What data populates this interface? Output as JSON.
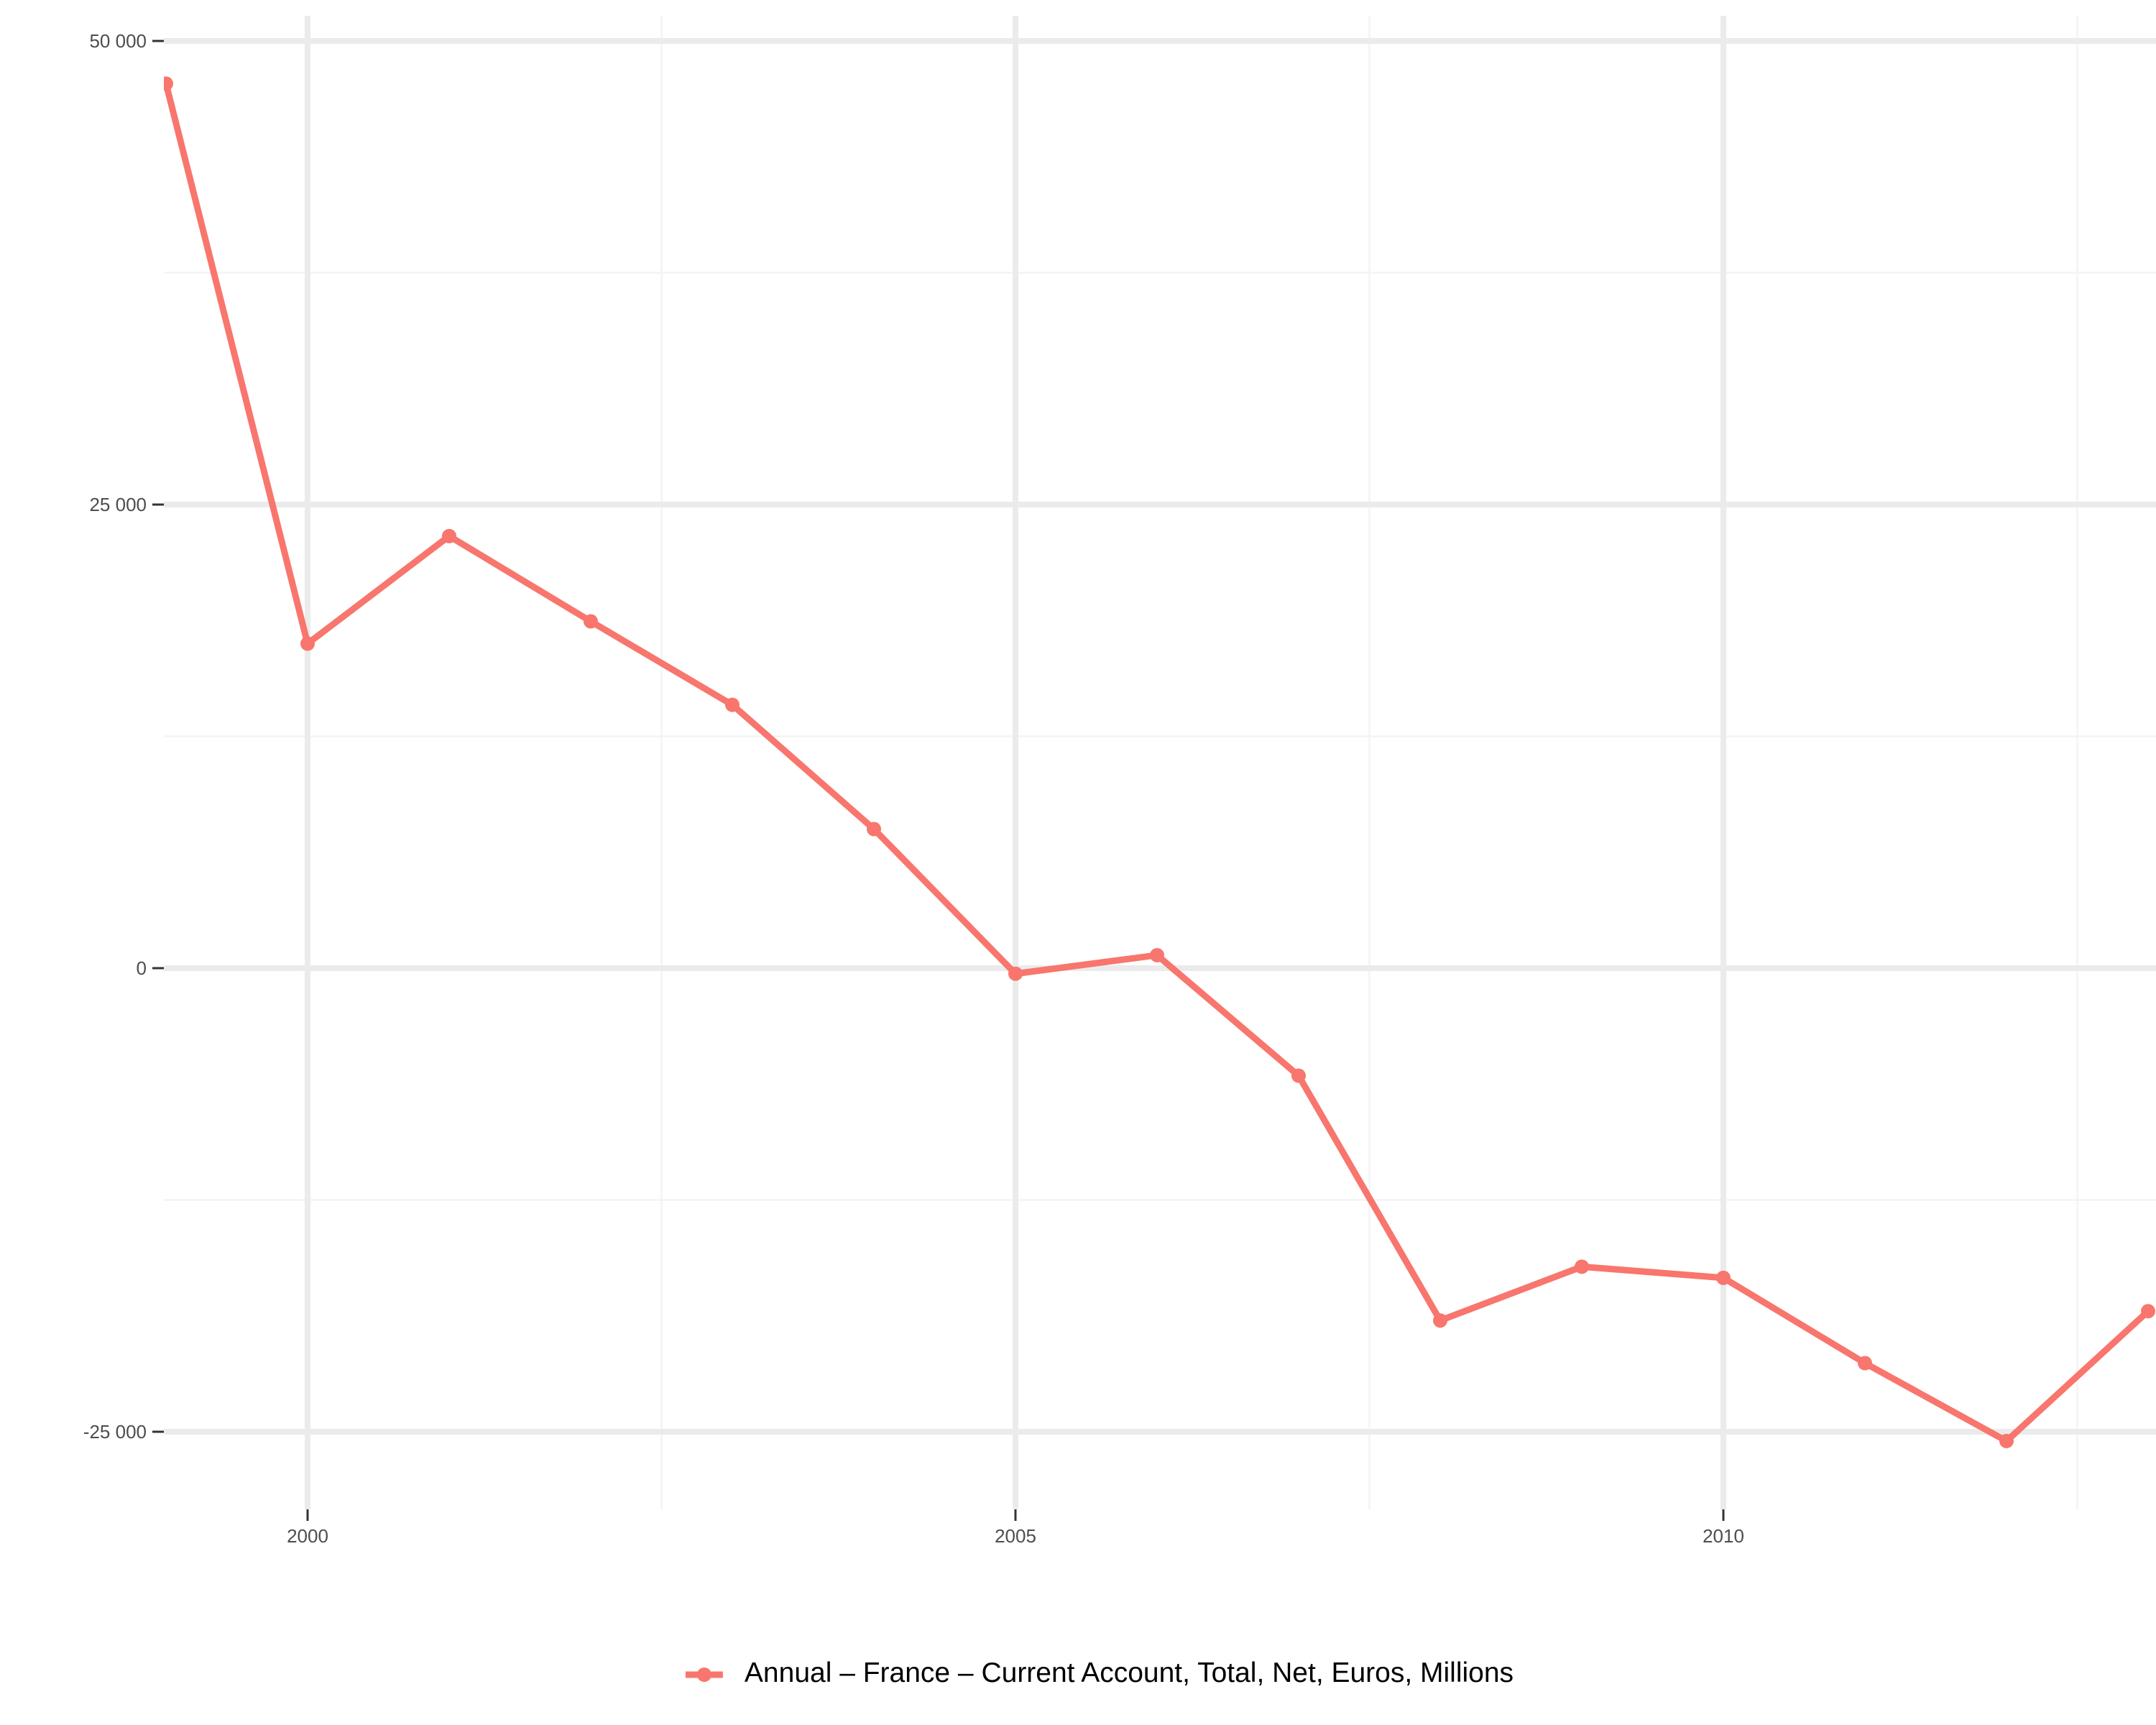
{
  "chart_data": {
    "type": "line",
    "x": [
      1999,
      2000,
      2001,
      2002,
      2003,
      2004,
      2005,
      2006,
      2007,
      2008,
      2009,
      2010,
      2011,
      2012,
      2013
    ],
    "series": [
      {
        "name": "Annual – France – Current Account, Total, Net, Euros, Millions",
        "values": [
          47700,
          17500,
          23300,
          18700,
          14200,
          7500,
          -300,
          700,
          -5800,
          -19000,
          -16100,
          -16700,
          -21300,
          -25500,
          -18500
        ]
      }
    ],
    "xlim": [
      1999,
      2013
    ],
    "ylim": [
      -29000,
      51500
    ],
    "x_ticks": [
      {
        "value": 2000,
        "label": "2000"
      },
      {
        "value": 2005,
        "label": "2005"
      },
      {
        "value": 2010,
        "label": "2010"
      }
    ],
    "y_ticks": [
      {
        "value": 50000,
        "label": "50 000"
      },
      {
        "value": 25000,
        "label": "25 000"
      },
      {
        "value": 0,
        "label": "0"
      },
      {
        "value": -25000,
        "label": "-25 000"
      }
    ],
    "minor_x_ticks": [
      2002.5,
      2007.5,
      2012.5
    ],
    "minor_y_ticks": [
      37500,
      12500,
      -12500
    ],
    "title": "",
    "xlabel": "",
    "ylabel": "",
    "grid": true,
    "legend_position": "bottom",
    "colors": {
      "series": "#F8766D",
      "grid_major": "#ebebeb",
      "grid_minor": "#f4f4f4",
      "axis_text": "#4d4d4d"
    }
  }
}
